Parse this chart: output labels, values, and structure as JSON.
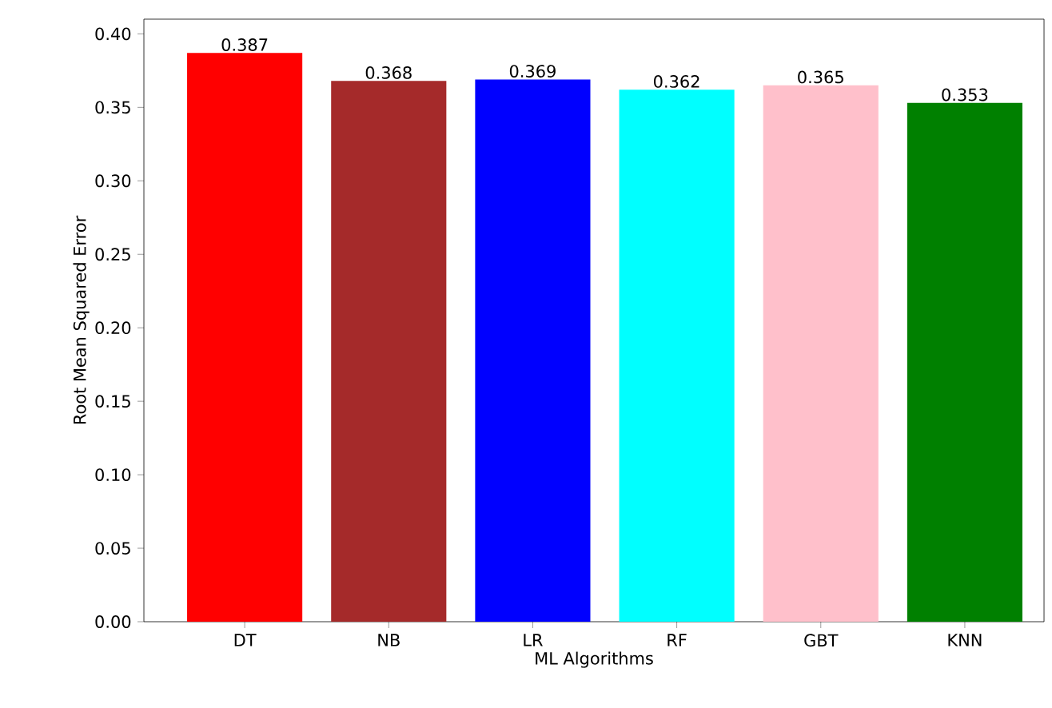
{
  "chart_data": {
    "type": "bar",
    "xlabel": "ML Algorithms",
    "ylabel": "Root Mean Squared Error",
    "categories": [
      "DT",
      "NB",
      "LR",
      "RF",
      "GBT",
      "KNN"
    ],
    "values": [
      0.387,
      0.368,
      0.369,
      0.362,
      0.365,
      0.353
    ],
    "colors": [
      "#ff0000",
      "#a52a2a",
      "#0000ff",
      "#00ffff",
      "#ffc0cb",
      "#008000"
    ],
    "ylim": [
      0,
      0.41
    ],
    "yticks": [
      {
        "value": 0,
        "label": "0.00"
      },
      {
        "value": 0.05,
        "label": "0.05"
      },
      {
        "value": 0.1,
        "label": "0.10"
      },
      {
        "value": 0.15,
        "label": "0.15"
      },
      {
        "value": 0.2,
        "label": "0.20"
      },
      {
        "value": 0.25,
        "label": "0.25"
      },
      {
        "value": 0.3,
        "label": "0.30"
      },
      {
        "value": 0.35,
        "label": "0.35"
      },
      {
        "value": 0.4,
        "label": "0.40"
      }
    ],
    "data_labels": true,
    "grid": false
  }
}
